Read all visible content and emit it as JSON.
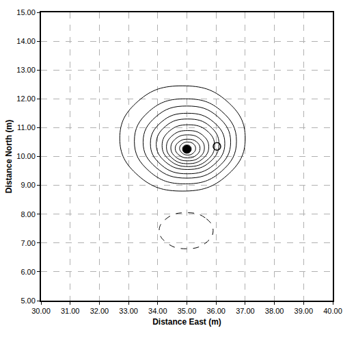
{
  "chart_data": {
    "type": "contour",
    "x_label": "Distance East (m)",
    "y_label": "Distance North (m)",
    "xlim": [
      30,
      40
    ],
    "xticks": [
      {
        "value": 30,
        "label": "30.00"
      },
      {
        "value": 31,
        "label": "31.00"
      },
      {
        "value": 32,
        "label": "32.00"
      },
      {
        "value": 33,
        "label": "33.00"
      },
      {
        "value": 34,
        "label": "34.00"
      },
      {
        "value": 35,
        "label": "35.00"
      },
      {
        "value": 36,
        "label": "36.00"
      },
      {
        "value": 37,
        "label": "37.00"
      },
      {
        "value": 38,
        "label": "38.00"
      },
      {
        "value": 39,
        "label": "39.00"
      },
      {
        "value": 40,
        "label": "40.00"
      }
    ],
    "ylim": [
      5,
      15
    ],
    "yticks": [
      {
        "value": 5,
        "label": "5.00"
      },
      {
        "value": 6,
        "label": "6.00"
      },
      {
        "value": 7,
        "label": "7.00"
      },
      {
        "value": 8,
        "label": "8.00"
      },
      {
        "value": 9,
        "label": "9.00"
      },
      {
        "value": 10,
        "label": "10.00"
      },
      {
        "value": 11,
        "label": "11.00"
      },
      {
        "value": 12,
        "label": "12.00"
      },
      {
        "value": 13,
        "label": "13.00"
      },
      {
        "value": 14,
        "label": "14.00"
      },
      {
        "value": 15,
        "label": "15.00"
      }
    ],
    "grid": true,
    "series": [
      {
        "type": "line",
        "line_style": "solid",
        "color": "#000000",
        "x": [
          37.0,
          36.37,
          34.85,
          33.33,
          32.7,
          33.33,
          34.85,
          36.37,
          37.0
        ],
        "y": [
          10.63,
          11.92,
          12.45,
          11.92,
          10.63,
          9.34,
          8.8,
          9.34,
          10.63
        ]
      },
      {
        "type": "line",
        "line_style": "solid",
        "color": "#000000",
        "x": [
          36.7,
          36.19,
          34.95,
          33.71,
          33.2,
          33.71,
          34.95,
          36.19,
          36.7
        ],
        "y": [
          10.53,
          11.57,
          12.0,
          11.57,
          10.53,
          9.49,
          9.05,
          9.49,
          10.53
        ]
      },
      {
        "type": "line",
        "line_style": "solid",
        "color": "#000000",
        "x": [
          36.5,
          36.06,
          35.0,
          33.94,
          33.5,
          33.94,
          35.0,
          36.06,
          36.5
        ],
        "y": [
          10.5,
          11.38,
          11.75,
          11.38,
          10.5,
          9.62,
          9.25,
          9.62,
          10.5
        ]
      },
      {
        "type": "line",
        "line_style": "solid",
        "color": "#000000",
        "x": [
          36.3,
          35.92,
          35.02,
          34.12,
          33.75,
          34.12,
          35.02,
          35.92,
          36.3
        ],
        "y": [
          10.45,
          11.19,
          11.5,
          11.19,
          10.45,
          9.71,
          9.4,
          9.71,
          10.45
        ]
      },
      {
        "type": "line",
        "line_style": "solid",
        "color": "#000000",
        "x": [
          36.1,
          35.79,
          35.03,
          34.27,
          33.95,
          34.27,
          35.03,
          35.79,
          36.1
        ],
        "y": [
          10.43,
          11.05,
          11.3,
          11.05,
          10.43,
          9.81,
          9.55,
          9.81,
          10.43
        ]
      },
      {
        "type": "line",
        "line_style": "solid",
        "color": "#000000",
        "x": [
          35.95,
          35.69,
          35.05,
          34.41,
          34.15,
          34.41,
          35.05,
          35.69,
          35.95
        ],
        "y": [
          10.38,
          10.89,
          11.1,
          10.89,
          10.38,
          9.87,
          9.65,
          9.87,
          10.38
        ]
      },
      {
        "type": "line",
        "line_style": "solid",
        "color": "#000000",
        "x": [
          35.75,
          35.54,
          35.03,
          34.52,
          34.3,
          34.52,
          35.03,
          35.54,
          35.75
        ],
        "y": [
          10.33,
          10.74,
          10.9,
          10.74,
          10.33,
          9.92,
          9.75,
          9.92,
          10.33
        ]
      },
      {
        "type": "line",
        "line_style": "solid",
        "color": "#000000",
        "x": [
          35.6,
          35.44,
          35.03,
          34.62,
          34.45,
          34.62,
          35.03,
          35.44,
          35.6
        ],
        "y": [
          10.3,
          10.62,
          10.75,
          10.62,
          10.3,
          9.98,
          9.85,
          9.98,
          10.3
        ]
      },
      {
        "type": "line",
        "line_style": "solid",
        "color": "#000000",
        "x": [
          35.45,
          35.33,
          35.03,
          34.73,
          34.6,
          34.73,
          35.03,
          35.33,
          35.45
        ],
        "y": [
          10.28,
          10.51,
          10.6,
          10.51,
          10.28,
          10.05,
          9.95,
          10.05,
          10.28
        ]
      },
      {
        "type": "line",
        "line_style": "solid",
        "color": "#000000",
        "x": [
          35.3,
          35.22,
          35.03,
          34.84,
          34.75,
          34.84,
          35.03,
          35.22,
          35.3
        ],
        "y": [
          10.28,
          10.44,
          10.5,
          10.44,
          10.28,
          10.12,
          10.05,
          10.12,
          10.28
        ]
      },
      {
        "type": "line",
        "line_style": "solid",
        "color": "#000000",
        "x": [
          35.15,
          35.11,
          35.0,
          34.89,
          34.85,
          34.89,
          35.0,
          35.11,
          35.15
        ],
        "y": [
          10.26,
          10.36,
          10.4,
          10.36,
          10.26,
          10.16,
          10.12,
          10.16,
          10.26
        ]
      },
      {
        "type": "line",
        "line_style": "dashed",
        "color": "#000000",
        "x": [
          35.9,
          35.63,
          34.98,
          34.33,
          34.05,
          34.33,
          34.98,
          35.63,
          35.9
        ],
        "y": [
          7.43,
          7.87,
          8.05,
          7.87,
          7.43,
          6.99,
          6.8,
          6.99,
          7.43
        ]
      },
      {
        "type": "scatter",
        "marker": "circle",
        "color": "#000000",
        "x": [
          35.0
        ],
        "y": [
          10.25
        ]
      },
      {
        "type": "scatter",
        "marker": "circle-open",
        "color": "#000000",
        "x": [
          36.03
        ],
        "y": [
          10.35
        ]
      }
    ]
  }
}
